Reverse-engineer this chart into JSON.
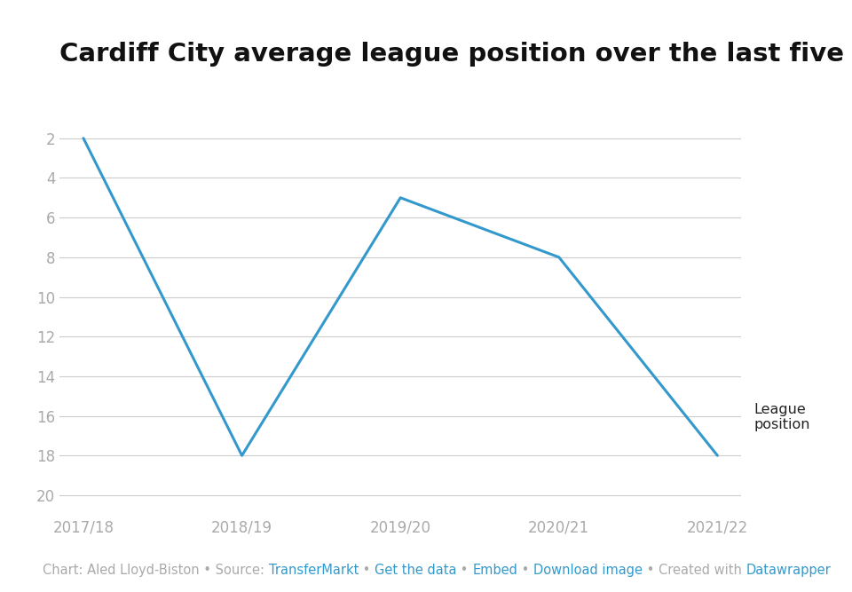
{
  "title": "Cardiff City average league position over the last five years",
  "x_labels": [
    "2017/18",
    "2018/19",
    "2019/20",
    "2020/21",
    "2021/22"
  ],
  "x_values": [
    0,
    1,
    2,
    3,
    4
  ],
  "y_values": [
    2,
    18,
    5,
    8,
    18
  ],
  "line_color": "#3399cc",
  "line_width": 2.2,
  "ylim_min": 1,
  "ylim_max": 21,
  "yticks": [
    2,
    4,
    6,
    8,
    10,
    12,
    14,
    16,
    18,
    20
  ],
  "background_color": "#ffffff",
  "grid_color": "#cccccc",
  "tick_color": "#aaaaaa",
  "title_fontsize": 21,
  "axis_fontsize": 12,
  "legend_label": "League\nposition",
  "legend_color": "#222222",
  "footer_link_color": "#3399cc",
  "footer_gray_color": "#aaaaaa",
  "footer_fontsize": 10.5
}
